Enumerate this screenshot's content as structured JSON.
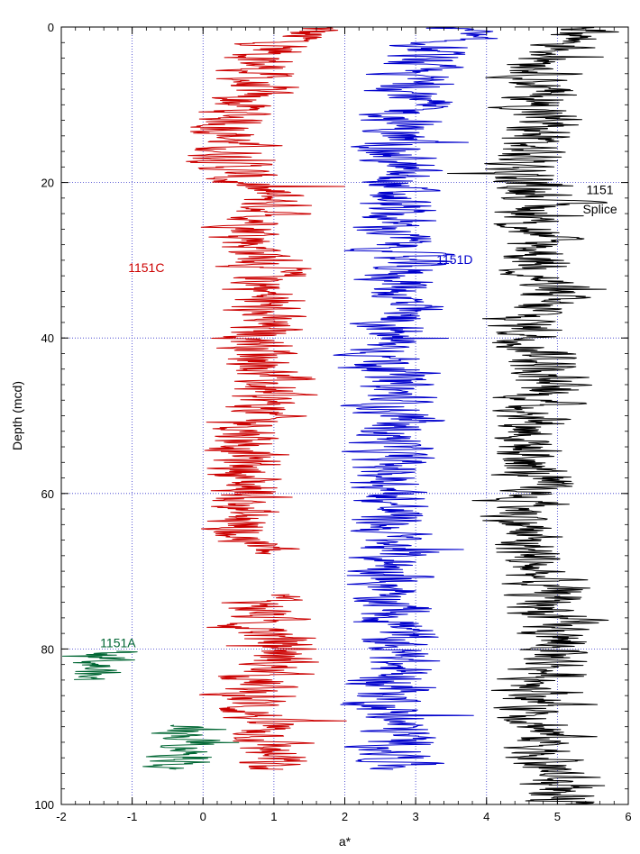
{
  "chart_data": {
    "type": "line",
    "xlabel": "a*",
    "ylabel": "Depth (mcd)",
    "xlim": [
      -2,
      6
    ],
    "ylim": [
      0,
      100
    ],
    "y_inverted": true,
    "grid": true,
    "x_ticks": [
      -2,
      -1,
      0,
      1,
      2,
      3,
      4,
      5,
      6
    ],
    "x_tick_labels": [
      "-2",
      "-1",
      "0",
      "1",
      "2",
      "3",
      "4",
      "5",
      "6"
    ],
    "y_ticks": [
      0,
      20,
      40,
      60,
      80,
      100
    ],
    "y_tick_labels": [
      "0",
      "20",
      "40",
      "60",
      "80",
      "100"
    ],
    "annotations": [
      {
        "label": "1151C",
        "color": "#cc0000",
        "x": -0.8,
        "y": 31.5
      },
      {
        "label": "1151D",
        "color": "#0000cc",
        "x": 3.55,
        "y": 30.5
      },
      {
        "label": "1151",
        "color": "#000000",
        "x": 5.6,
        "y": 21.5
      },
      {
        "label": "Splice",
        "color": "#000000",
        "x": 5.6,
        "y": 24.0
      },
      {
        "label": "1151A",
        "color": "#006633",
        "x": -1.2,
        "y": 79.8
      }
    ],
    "series": [
      {
        "name": "1151C",
        "color": "#cc0000",
        "depth_range": [
          0,
          95.5
        ],
        "gaps": [
          [
            67.8,
            73.0
          ]
        ],
        "profile": {
          "depth": [
            0,
            2,
            5,
            10,
            15,
            20,
            22,
            24,
            27,
            30,
            33,
            36,
            39,
            42,
            45,
            50,
            55,
            58,
            60,
            62,
            65,
            67,
            74,
            77,
            80,
            83,
            86,
            89,
            91,
            94,
            95.5
          ],
          "a_star": [
            1.6,
            1.1,
            0.8,
            0.5,
            0.4,
            0.45,
            1.0,
            1.0,
            0.7,
            0.9,
            0.9,
            0.8,
            0.8,
            0.9,
            0.9,
            0.8,
            0.6,
            0.6,
            0.7,
            0.5,
            0.5,
            0.8,
            0.9,
            0.8,
            1.2,
            0.9,
            0.6,
            0.8,
            1.0,
            0.9,
            0.8
          ]
        },
        "variability": 0.4
      },
      {
        "name": "1151D",
        "color": "#0000cc",
        "depth_range": [
          0,
          95.5
        ],
        "gaps": [],
        "profile": {
          "depth": [
            0,
            2,
            5,
            9,
            12,
            15,
            20,
            25,
            30,
            35,
            40,
            45,
            50,
            55,
            60,
            65,
            70,
            75,
            80,
            85,
            88,
            90,
            95.5
          ],
          "a_star": [
            3.7,
            3.3,
            2.9,
            3.0,
            2.8,
            2.7,
            2.7,
            2.65,
            2.8,
            2.8,
            2.6,
            2.65,
            2.7,
            2.6,
            2.7,
            2.6,
            2.7,
            2.8,
            2.7,
            2.7,
            2.6,
            2.75,
            2.8
          ]
        },
        "variability": 0.4
      },
      {
        "name": "1151 Splice",
        "color": "#000000",
        "depth_range": [
          0,
          100
        ],
        "gaps": [],
        "profile": {
          "depth": [
            0,
            2,
            5,
            9,
            12,
            15,
            20,
            22,
            25,
            30,
            35,
            38,
            42,
            45,
            50,
            55,
            60,
            65,
            70,
            75,
            80,
            85,
            90,
            95,
            100
          ],
          "a_star": [
            5.6,
            5.2,
            4.9,
            4.7,
            4.8,
            4.6,
            4.5,
            4.9,
            4.6,
            4.8,
            4.8,
            4.5,
            4.9,
            4.8,
            4.7,
            4.6,
            4.6,
            4.5,
            4.7,
            4.9,
            5.0,
            4.8,
            4.8,
            4.9,
            5.0
          ]
        },
        "variability": 0.4
      },
      {
        "name": "1151A",
        "color": "#006633",
        "segments": [
          {
            "depth_range": [
              80.3,
              84.0
            ],
            "profile": {
              "depth": [
                80.3,
                81.5,
                82.5,
                84.0
              ],
              "a_star": [
                -1.2,
                -1.4,
                -1.5,
                -1.7
              ]
            },
            "variability": 0.3
          },
          {
            "depth_range": [
              89.8,
              95.5
            ],
            "profile": {
              "depth": [
                89.8,
                91,
                92.5,
                94,
                95.5
              ],
              "a_star": [
                -0.15,
                -0.2,
                -0.1,
                -0.2,
                -0.35
              ]
            },
            "variability": 0.3
          }
        ]
      }
    ]
  }
}
